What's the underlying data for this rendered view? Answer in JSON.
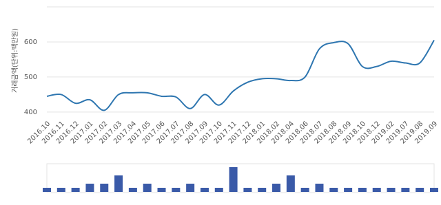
{
  "chart_data": {
    "type": "line",
    "y_label": "거래금액(단위:백만원)",
    "categories": [
      "2016.10",
      "2016.11",
      "2016.12",
      "2017.01",
      "2017.02",
      "2017.03",
      "2017.04",
      "2017.05",
      "2017.06",
      "2017.07",
      "2017.08",
      "2017.09",
      "2017.10",
      "2017.11",
      "2017.12",
      "2018.01",
      "2018.02",
      "2018.04",
      "2018.06",
      "2018.07",
      "2018.08",
      "2018.09",
      "2018.10",
      "2018.12",
      "2019.02",
      "2019.07",
      "2019.08",
      "2019.09"
    ],
    "series": [
      {
        "color": "#2e76b0",
        "values": [
          445,
          450,
          425,
          435,
          405,
          450,
          455,
          455,
          445,
          443,
          410,
          450,
          420,
          460,
          485,
          495,
          495,
          490,
          500,
          580,
          598,
          595,
          530,
          530,
          545,
          540,
          540,
          605
        ]
      }
    ],
    "ylim": [
      390,
      700
    ],
    "yticks": [
      400,
      500,
      600
    ],
    "grid": true,
    "volume": {
      "type": "bar",
      "color": "#3a5aa8",
      "values": [
        1,
        1,
        1,
        2,
        2,
        4,
        1,
        2,
        1,
        1,
        2,
        1,
        1,
        6,
        1,
        1,
        2,
        4,
        1,
        2,
        1,
        1,
        1,
        1,
        1,
        1,
        1,
        1
      ],
      "ylim": [
        0,
        6.5
      ]
    }
  }
}
